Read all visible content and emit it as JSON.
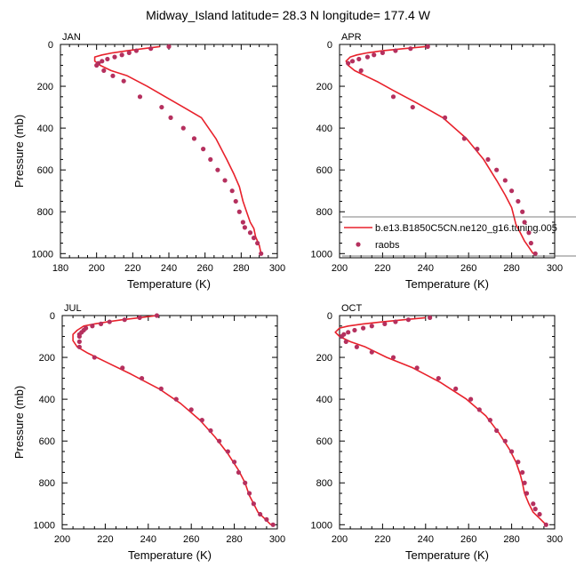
{
  "figure": {
    "title": "Midway_Island  latitude= 28.3 N longitude= 177.4 W"
  },
  "colors": {
    "model_line": "#e8212b",
    "obs_marker": "#b5305e",
    "axis": "#000000"
  },
  "legend": {
    "model_label": "b.e13.B1850C5CN.ne120_g16.tuning.005",
    "obs_label": "raobs",
    "placement": "lower-right of APR panel"
  },
  "chart_data": [
    {
      "type": "line",
      "panel_label": "JAN",
      "xlabel": "Temperature (K)",
      "ylabel": "Pressure (mb)",
      "xlim": [
        180,
        300
      ],
      "ylim": [
        1020,
        0
      ],
      "xticks": [
        180,
        200,
        220,
        240,
        260,
        280,
        300
      ],
      "yticks": [
        0,
        200,
        400,
        600,
        800,
        1000
      ],
      "y_inverted": true,
      "series": [
        {
          "name": "b.e13.B1850C5CN.ne120_g16.tuning.005",
          "style": "line",
          "x": [
            235,
            226,
            217,
            209,
            203,
            199,
            199,
            202,
            208,
            217,
            228,
            238,
            248,
            258,
            266,
            272,
            276,
            279,
            281,
            283,
            285,
            287,
            288,
            290,
            291
          ],
          "y": [
            10,
            20,
            30,
            40,
            50,
            60,
            80,
            100,
            125,
            150,
            200,
            250,
            300,
            350,
            450,
            550,
            620,
            680,
            750,
            800,
            850,
            880,
            920,
            960,
            1000
          ]
        },
        {
          "name": "raobs",
          "style": "markers",
          "x": [
            240,
            230,
            222,
            218,
            214,
            210,
            206,
            203,
            201,
            200,
            204,
            209,
            215,
            224,
            236,
            241,
            248,
            254,
            259,
            263,
            267,
            271,
            275,
            277,
            279,
            281,
            282,
            285,
            287,
            289,
            291
          ],
          "y": [
            10,
            20,
            30,
            40,
            50,
            60,
            70,
            80,
            90,
            100,
            125,
            150,
            175,
            250,
            300,
            350,
            400,
            450,
            500,
            550,
            600,
            650,
            700,
            750,
            800,
            850,
            875,
            900,
            925,
            950,
            1000
          ]
        }
      ]
    },
    {
      "type": "line",
      "panel_label": "APR",
      "xlabel": "Temperature (K)",
      "ylabel": "",
      "xlim": [
        200,
        300
      ],
      "ylim": [
        1020,
        0
      ],
      "xticks": [
        200,
        220,
        240,
        260,
        280,
        300
      ],
      "yticks": [
        0,
        200,
        400,
        600,
        800,
        1000
      ],
      "y_inverted": true,
      "series": [
        {
          "name": "b.e13.B1850C5CN.ne120_g16.tuning.005",
          "style": "line",
          "x": [
            240,
            230,
            220,
            213,
            208,
            205,
            203,
            204,
            207,
            212,
            218,
            225,
            236,
            248,
            259,
            267,
            273,
            277,
            280,
            281,
            282,
            284,
            286,
            288,
            290
          ],
          "y": [
            10,
            20,
            30,
            40,
            50,
            60,
            80,
            100,
            125,
            150,
            180,
            220,
            280,
            350,
            450,
            550,
            650,
            720,
            780,
            820,
            860,
            900,
            940,
            970,
            1000
          ]
        },
        {
          "name": "raobs",
          "style": "markers",
          "x": [
            241,
            233,
            226,
            220,
            216,
            213,
            209,
            206,
            204,
            210,
            225,
            234,
            249,
            258,
            264,
            269,
            273,
            277,
            280,
            283,
            285,
            286,
            288,
            289,
            291
          ],
          "y": [
            10,
            20,
            30,
            40,
            50,
            60,
            70,
            80,
            90,
            125,
            250,
            300,
            350,
            450,
            500,
            550,
            600,
            650,
            700,
            750,
            800,
            850,
            900,
            950,
            1000
          ]
        }
      ]
    },
    {
      "type": "line",
      "panel_label": "JUL",
      "xlabel": "Temperature (K)",
      "ylabel": "Pressure (mb)",
      "xlim": [
        200,
        300
      ],
      "ylim": [
        1020,
        0
      ],
      "xticks": [
        200,
        220,
        240,
        260,
        280,
        300
      ],
      "yticks": [
        0,
        200,
        400,
        600,
        800,
        1000
      ],
      "y_inverted": true,
      "series": [
        {
          "name": "b.e13.B1850C5CN.ne120_g16.tuning.005",
          "style": "line",
          "x": [
            244,
            236,
            228,
            221,
            215,
            210,
            207,
            205,
            205,
            207,
            212,
            220,
            232,
            245,
            255,
            264,
            271,
            277,
            282,
            285,
            287,
            289,
            291,
            294,
            297
          ],
          "y": [
            0,
            10,
            20,
            30,
            40,
            50,
            70,
            90,
            120,
            150,
            180,
            220,
            280,
            350,
            420,
            500,
            580,
            660,
            740,
            800,
            860,
            900,
            940,
            970,
            1000
          ]
        },
        {
          "name": "raobs",
          "style": "markers",
          "x": [
            244,
            236,
            229,
            222,
            218,
            214,
            211,
            210,
            209,
            208,
            208,
            208,
            208,
            215,
            228,
            237,
            246,
            253,
            260,
            265,
            269,
            273,
            277,
            280,
            282,
            285,
            287,
            289,
            292,
            295,
            298
          ],
          "y": [
            0,
            10,
            20,
            30,
            40,
            50,
            60,
            70,
            80,
            90,
            100,
            125,
            150,
            200,
            250,
            300,
            350,
            400,
            450,
            500,
            550,
            600,
            650,
            700,
            750,
            800,
            850,
            900,
            950,
            975,
            1000
          ]
        }
      ]
    },
    {
      "type": "line",
      "panel_label": "OCT",
      "xlabel": "Temperature (K)",
      "ylabel": "",
      "xlim": [
        200,
        300
      ],
      "ylim": [
        1020,
        0
      ],
      "xticks": [
        200,
        220,
        240,
        260,
        280,
        300
      ],
      "yticks": [
        0,
        200,
        400,
        600,
        800,
        1000
      ],
      "y_inverted": true,
      "series": [
        {
          "name": "b.e13.B1850C5CN.ne120_g16.tuning.005",
          "style": "line",
          "x": [
            240,
            230,
            220,
            211,
            204,
            200,
            198,
            200,
            205,
            212,
            222,
            234,
            247,
            259,
            268,
            274,
            279,
            282,
            284,
            285,
            286,
            288,
            290,
            293,
            296
          ],
          "y": [
            10,
            20,
            30,
            40,
            50,
            60,
            80,
            100,
            125,
            150,
            200,
            250,
            320,
            400,
            480,
            560,
            640,
            700,
            760,
            800,
            850,
            900,
            940,
            970,
            1000
          ]
        },
        {
          "name": "raobs",
          "style": "markers",
          "x": [
            242,
            232,
            226,
            221,
            215,
            211,
            207,
            204,
            202,
            201,
            203,
            208,
            215,
            225,
            236,
            246,
            254,
            261,
            265,
            270,
            273,
            277,
            280,
            283,
            285,
            286,
            287,
            290,
            291,
            293,
            296
          ],
          "y": [
            10,
            20,
            30,
            40,
            50,
            60,
            70,
            80,
            90,
            100,
            125,
            150,
            175,
            200,
            250,
            300,
            350,
            400,
            450,
            500,
            550,
            600,
            650,
            700,
            750,
            800,
            850,
            900,
            925,
            950,
            1000
          ]
        }
      ]
    }
  ]
}
